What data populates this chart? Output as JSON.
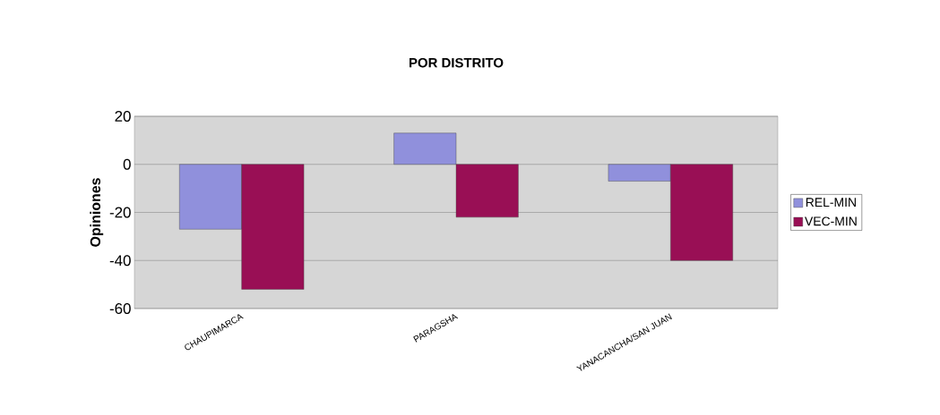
{
  "chart_data": {
    "type": "bar",
    "title": "POR DISTRITO",
    "ylabel": "Opiniones",
    "categories": [
      "CHAUPIMARCA",
      "PARAGSHA",
      "YANACANCHA/SAN JUAN"
    ],
    "series": [
      {
        "name": "REL-MIN",
        "color": "#9090dc",
        "values": [
          -27,
          13,
          -7
        ]
      },
      {
        "name": "VEC-MIN",
        "color": "#990f55",
        "values": [
          -52,
          -22,
          -40
        ]
      }
    ],
    "ylim": [
      -60,
      20
    ],
    "yticks": [
      -60,
      -40,
      -20,
      0,
      20
    ],
    "grid": "y",
    "legend": "right"
  }
}
